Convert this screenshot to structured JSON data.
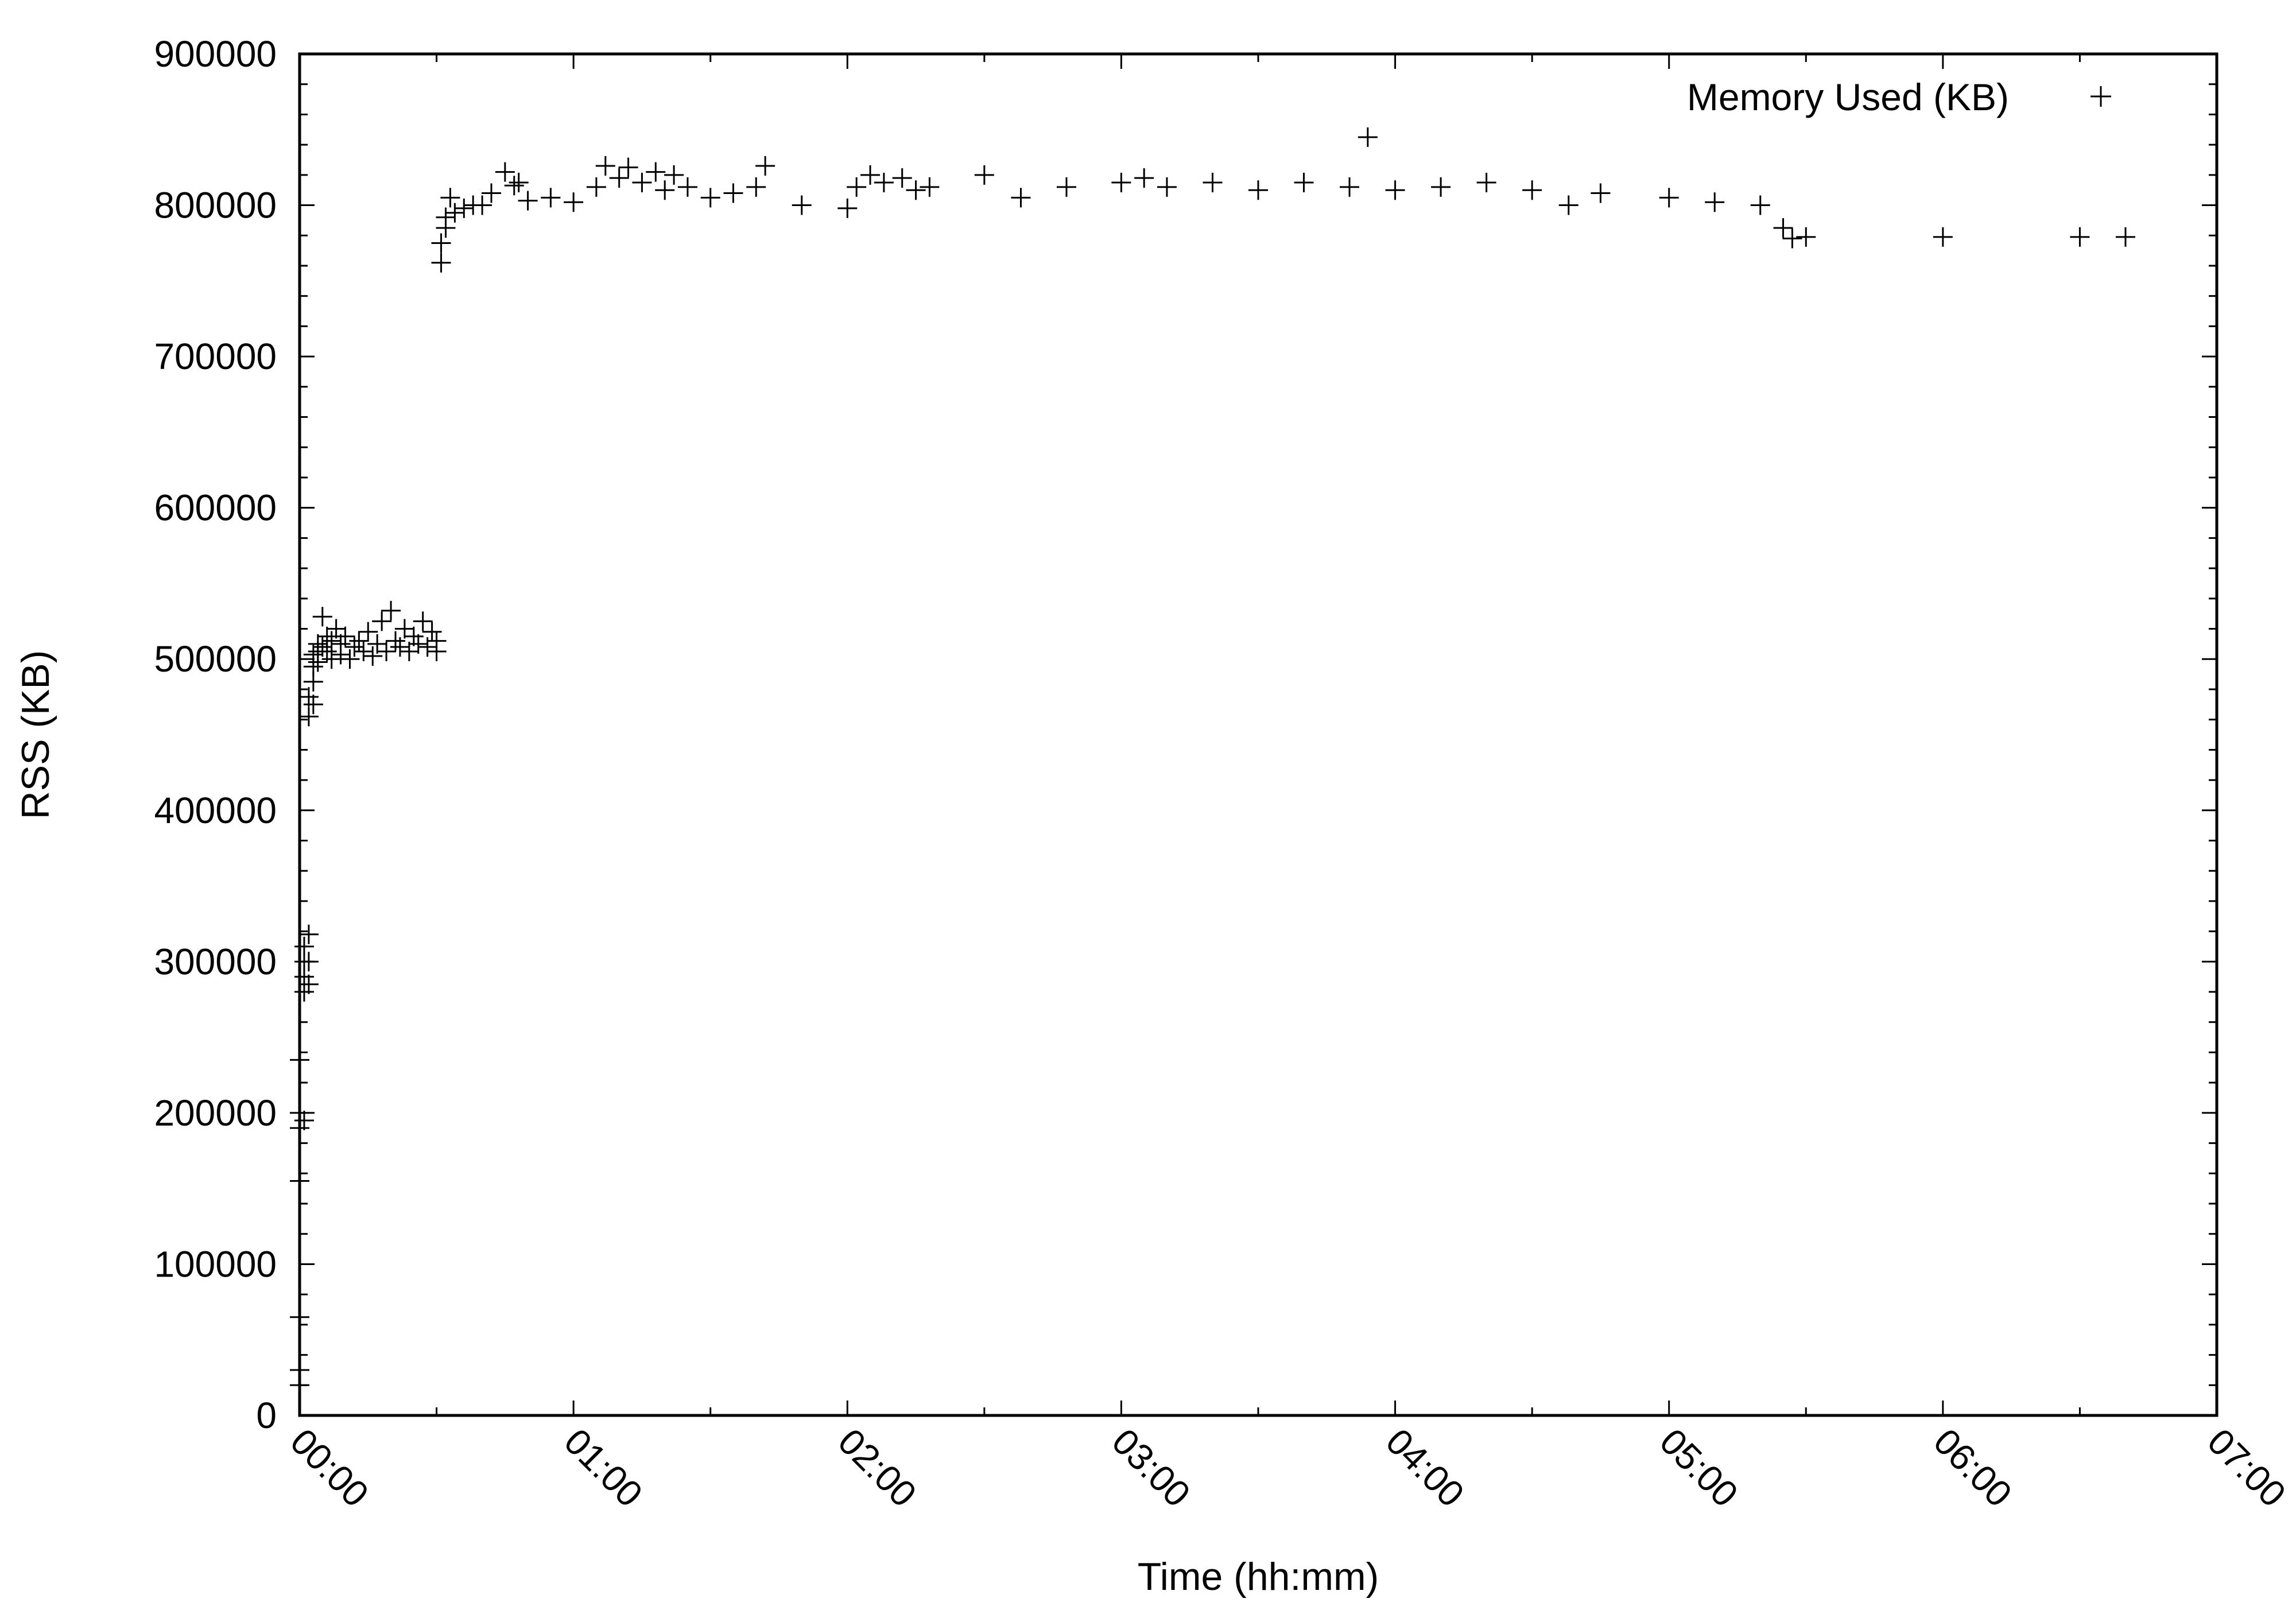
{
  "chart_data": {
    "type": "scatter",
    "title": "",
    "xlabel": "Time (hh:mm)",
    "ylabel": "RSS (KB)",
    "xlim": [
      "00:00",
      "07:00"
    ],
    "ylim": [
      0,
      900000
    ],
    "x_ticks": [
      "00:00",
      "01:00",
      "02:00",
      "03:00",
      "04:00",
      "05:00",
      "06:00",
      "07:00"
    ],
    "y_ticks": [
      0,
      100000,
      200000,
      300000,
      400000,
      500000,
      600000,
      700000,
      800000,
      900000
    ],
    "y_tick_labels": [
      "0",
      "100000",
      "200000",
      "300000",
      "400000",
      "500000",
      "600000",
      "700000",
      "800000",
      "900000"
    ],
    "grid": false,
    "legend": {
      "position": "top-right"
    },
    "marker": "+",
    "color": "#000000",
    "series": [
      {
        "name": "Memory Used (KB)",
        "points": [
          [
            "00:00",
            20000
          ],
          [
            "00:00",
            30000
          ],
          [
            "00:00",
            65000
          ],
          [
            "00:00",
            155000
          ],
          [
            "00:00",
            190000
          ],
          [
            "00:00",
            200000
          ],
          [
            "00:00",
            235000
          ],
          [
            "00:01",
            195000
          ],
          [
            "00:01",
            280000
          ],
          [
            "00:01",
            290000
          ],
          [
            "00:01",
            300000
          ],
          [
            "00:01",
            310000
          ],
          [
            "00:02",
            285000
          ],
          [
            "00:02",
            300000
          ],
          [
            "00:02",
            318000
          ],
          [
            "00:02",
            462000
          ],
          [
            "00:02",
            475000
          ],
          [
            "00:03",
            470000
          ],
          [
            "00:03",
            485000
          ],
          [
            "00:03",
            495000
          ],
          [
            "00:03",
            503000
          ],
          [
            "00:04",
            498000
          ],
          [
            "00:04",
            505000
          ],
          [
            "00:04",
            510000
          ],
          [
            "00:05",
            508000
          ],
          [
            "00:05",
            528000
          ],
          [
            "00:06",
            505000
          ],
          [
            "00:06",
            515000
          ],
          [
            "00:07",
            500000
          ],
          [
            "00:07",
            512000
          ],
          [
            "00:08",
            520000
          ],
          [
            "00:09",
            503000
          ],
          [
            "00:09",
            510000
          ],
          [
            "00:10",
            515000
          ],
          [
            "00:11",
            500000
          ],
          [
            "00:12",
            508000
          ],
          [
            "00:13",
            512000
          ],
          [
            "00:14",
            505000
          ],
          [
            "00:15",
            518000
          ],
          [
            "00:16",
            502000
          ],
          [
            "00:17",
            510000
          ],
          [
            "00:18",
            525000
          ],
          [
            "00:19",
            505000
          ],
          [
            "00:20",
            532000
          ],
          [
            "00:21",
            512000
          ],
          [
            "00:22",
            508000
          ],
          [
            "00:23",
            520000
          ],
          [
            "00:24",
            505000
          ],
          [
            "00:25",
            515000
          ],
          [
            "00:26",
            510000
          ],
          [
            "00:27",
            525000
          ],
          [
            "00:28",
            508000
          ],
          [
            "00:29",
            518000
          ],
          [
            "00:30",
            512000
          ],
          [
            "00:30",
            505000
          ],
          [
            "00:31",
            762000
          ],
          [
            "00:31",
            775000
          ],
          [
            "00:32",
            785000
          ],
          [
            "00:32",
            792000
          ],
          [
            "00:33",
            805000
          ],
          [
            "00:34",
            795000
          ],
          [
            "00:36",
            798000
          ],
          [
            "00:38",
            800000
          ],
          [
            "00:40",
            800000
          ],
          [
            "00:42",
            808000
          ],
          [
            "00:45",
            822000
          ],
          [
            "00:47",
            813000
          ],
          [
            "00:48",
            815000
          ],
          [
            "00:50",
            803000
          ],
          [
            "00:55",
            805000
          ],
          [
            "01:00",
            802000
          ],
          [
            "01:05",
            812000
          ],
          [
            "01:07",
            826000
          ],
          [
            "01:10",
            818000
          ],
          [
            "01:12",
            825000
          ],
          [
            "01:15",
            815000
          ],
          [
            "01:18",
            822000
          ],
          [
            "01:20",
            810000
          ],
          [
            "01:22",
            820000
          ],
          [
            "01:25",
            812000
          ],
          [
            "01:30",
            805000
          ],
          [
            "01:35",
            808000
          ],
          [
            "01:40",
            812000
          ],
          [
            "01:42",
            826000
          ],
          [
            "01:50",
            800000
          ],
          [
            "02:00",
            798000
          ],
          [
            "02:02",
            812000
          ],
          [
            "02:05",
            820000
          ],
          [
            "02:08",
            815000
          ],
          [
            "02:12",
            818000
          ],
          [
            "02:15",
            810000
          ],
          [
            "02:18",
            812000
          ],
          [
            "02:30",
            820000
          ],
          [
            "02:38",
            805000
          ],
          [
            "02:48",
            812000
          ],
          [
            "03:00",
            815000
          ],
          [
            "03:05",
            818000
          ],
          [
            "03:10",
            812000
          ],
          [
            "03:20",
            815000
          ],
          [
            "03:30",
            810000
          ],
          [
            "03:40",
            815000
          ],
          [
            "03:50",
            812000
          ],
          [
            "03:54",
            845000
          ],
          [
            "04:00",
            810000
          ],
          [
            "04:10",
            812000
          ],
          [
            "04:20",
            815000
          ],
          [
            "04:30",
            810000
          ],
          [
            "04:38",
            800000
          ],
          [
            "04:45",
            808000
          ],
          [
            "05:00",
            805000
          ],
          [
            "05:10",
            802000
          ],
          [
            "05:20",
            800000
          ],
          [
            "05:25",
            785000
          ],
          [
            "05:27",
            778000
          ],
          [
            "05:30",
            779000
          ],
          [
            "06:00",
            779000
          ],
          [
            "06:30",
            779000
          ],
          [
            "06:40",
            779000
          ]
        ]
      }
    ]
  }
}
